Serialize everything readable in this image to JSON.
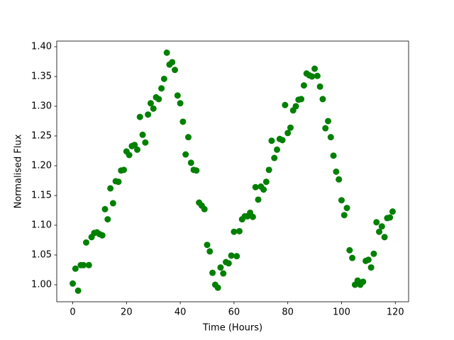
{
  "chart_data": {
    "type": "scatter",
    "x_label": "Time (Hours)",
    "y_label": "Normalised Flux",
    "series": [
      {
        "color": "#008000",
        "x": [
          0,
          1,
          2,
          3,
          4,
          5,
          6,
          7,
          8,
          9,
          10,
          11,
          12,
          13,
          14,
          15,
          16,
          17,
          18,
          19,
          20,
          21,
          22,
          23,
          24,
          25,
          26,
          27,
          28,
          29,
          30,
          31,
          32,
          33,
          34,
          35,
          36,
          37,
          38,
          39,
          40,
          41,
          42,
          43,
          44,
          45,
          46,
          47,
          48,
          49,
          50,
          51,
          52,
          53,
          54,
          55,
          56,
          57,
          58,
          59,
          60,
          61,
          62,
          63,
          64,
          65,
          66,
          67,
          68,
          69,
          70,
          71,
          72,
          73,
          74,
          75,
          76,
          77,
          78,
          79,
          80,
          81,
          82,
          83,
          84,
          85,
          86,
          87,
          88,
          89,
          90,
          91,
          92,
          93,
          94,
          95,
          96,
          97,
          98,
          99,
          100,
          101,
          102,
          103,
          104,
          105,
          106,
          107,
          108,
          109,
          110,
          111,
          112,
          113,
          114,
          115,
          116,
          117,
          118,
          119
        ],
        "values": [
          1.002,
          1.027,
          0.99,
          1.033,
          1.033,
          1.071,
          1.033,
          1.08,
          1.087,
          1.088,
          1.085,
          1.083,
          1.127,
          1.11,
          1.162,
          1.137,
          1.174,
          1.173,
          1.192,
          1.193,
          1.224,
          1.218,
          1.233,
          1.235,
          1.227,
          1.282,
          1.252,
          1.239,
          1.286,
          1.305,
          1.296,
          1.315,
          1.312,
          1.33,
          1.346,
          1.39,
          1.37,
          1.374,
          1.361,
          1.318,
          1.305,
          1.274,
          1.219,
          1.248,
          1.205,
          1.193,
          1.192,
          1.138,
          1.133,
          1.127,
          1.067,
          1.056,
          1.02,
          1.0,
          0.995,
          1.029,
          1.019,
          1.038,
          1.036,
          1.049,
          1.089,
          1.048,
          1.09,
          1.11,
          1.115,
          1.115,
          1.121,
          1.114,
          1.164,
          1.143,
          1.165,
          1.16,
          1.173,
          1.193,
          1.242,
          1.213,
          1.227,
          1.245,
          1.243,
          1.302,
          1.255,
          1.264,
          1.293,
          1.3,
          1.311,
          1.312,
          1.335,
          1.355,
          1.352,
          1.35,
          1.363,
          1.351,
          1.333,
          1.312,
          1.263,
          1.275,
          1.248,
          1.217,
          1.19,
          1.177,
          1.142,
          1.117,
          1.129,
          1.058,
          1.045,
          1.0,
          1.007,
          1.0,
          1.005,
          1.04,
          1.042,
          1.029,
          1.052,
          1.105,
          1.089,
          1.098,
          1.08,
          1.112,
          1.113,
          1.123
        ]
      }
    ],
    "xlim": [
      -5.95,
      124.95
    ],
    "xticks": [
      0,
      20,
      40,
      60,
      80,
      100,
      120
    ],
    "ylim": [
      0.9714,
      1.4095
    ],
    "yticks": [
      {
        "value": 1.0,
        "label": "1.00"
      },
      {
        "value": 1.05,
        "label": "1.05"
      },
      {
        "value": 1.1,
        "label": "1.10"
      },
      {
        "value": 1.15,
        "label": "1.15"
      },
      {
        "value": 1.2,
        "label": "1.20"
      },
      {
        "value": 1.25,
        "label": "1.25"
      },
      {
        "value": 1.3,
        "label": "1.30"
      },
      {
        "value": 1.35,
        "label": "1.35"
      },
      {
        "value": 1.4,
        "label": "1.40"
      }
    ]
  }
}
